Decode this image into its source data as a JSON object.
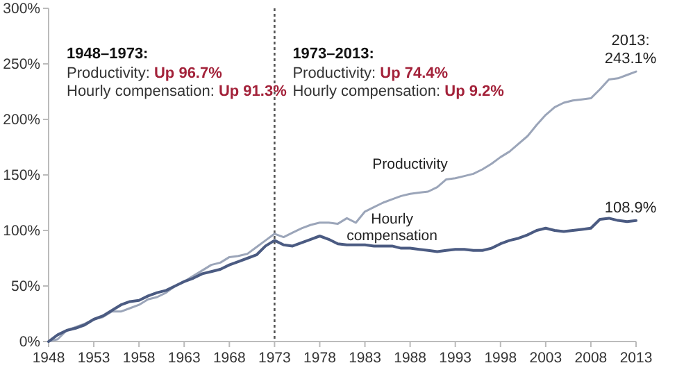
{
  "chart_data": {
    "type": "line",
    "x": [
      1948,
      1949,
      1950,
      1951,
      1952,
      1953,
      1954,
      1955,
      1956,
      1957,
      1958,
      1959,
      1960,
      1961,
      1962,
      1963,
      1964,
      1965,
      1966,
      1967,
      1968,
      1969,
      1970,
      1971,
      1972,
      1973,
      1974,
      1975,
      1976,
      1977,
      1978,
      1979,
      1980,
      1981,
      1982,
      1983,
      1984,
      1985,
      1986,
      1987,
      1988,
      1989,
      1990,
      1991,
      1992,
      1993,
      1994,
      1995,
      1996,
      1997,
      1998,
      1999,
      2000,
      2001,
      2002,
      2003,
      2004,
      2005,
      2006,
      2007,
      2008,
      2009,
      2010,
      2011,
      2012,
      2013
    ],
    "series": [
      {
        "name": "Productivity",
        "color": "#9ba5b9",
        "values": [
          0,
          2,
          10,
          13,
          16,
          20,
          22,
          27,
          27,
          30,
          33,
          38,
          40,
          44,
          50,
          54,
          59,
          64,
          69,
          71,
          76,
          77,
          79,
          85,
          91,
          97,
          94,
          98,
          102,
          105,
          107,
          107,
          106,
          111,
          107,
          117,
          121,
          125,
          128,
          131,
          133,
          134,
          135,
          139,
          146,
          147,
          149,
          151,
          155,
          160,
          166,
          171,
          178,
          185,
          195,
          204,
          211,
          215,
          217,
          218,
          219,
          227,
          236,
          237,
          240,
          243.1
        ]
      },
      {
        "name": "Hourly compensation",
        "color": "#4b5b82",
        "values": [
          0,
          6,
          10,
          12,
          15,
          20,
          23,
          28,
          33,
          36,
          37,
          41,
          44,
          46,
          50,
          54,
          57,
          61,
          63,
          65,
          69,
          72,
          75,
          78,
          86,
          91,
          87,
          86,
          89,
          92,
          95,
          92,
          88,
          87,
          87,
          87,
          86,
          86,
          86,
          84,
          84,
          83,
          82,
          81,
          82,
          83,
          83,
          82,
          82,
          84,
          88,
          91,
          93,
          96,
          100,
          102,
          100,
          99,
          100,
          101,
          102,
          110,
          111,
          109,
          108,
          108.9
        ]
      }
    ],
    "xlim": [
      1948,
      2013
    ],
    "xticks": [
      1948,
      1953,
      1958,
      1963,
      1968,
      1973,
      1978,
      1983,
      1988,
      1993,
      1998,
      2003,
      2008,
      2013
    ],
    "ylim": [
      0,
      300
    ],
    "yticks": [
      {
        "value": 0,
        "label": "0%"
      },
      {
        "value": 50,
        "label": "50%"
      },
      {
        "value": 100,
        "label": "100%"
      },
      {
        "value": 150,
        "label": "150%"
      },
      {
        "value": 200,
        "label": "200%"
      },
      {
        "value": 250,
        "label": "250%"
      },
      {
        "value": 300,
        "label": "300%"
      }
    ],
    "ref_lines": [
      {
        "axis": "x",
        "value": 1973,
        "label": null,
        "color": "#555555",
        "line_style": "dotted"
      }
    ],
    "annotations": [
      "1948–1973:",
      "Productivity:",
      "Up 96.7%",
      "Hourly compensation:",
      "Up 91.3%",
      "1973–2013:",
      "Productivity:",
      "Up 74.4%",
      "Hourly compensation:",
      "Up 9.2%",
      {
        "text": "2013:\n243.1%",
        "x": 2013,
        "y": 243.1
      },
      {
        "text": "108.9%",
        "x": 2013,
        "y": 108.9
      }
    ],
    "grid": false,
    "legend": false
  }
}
